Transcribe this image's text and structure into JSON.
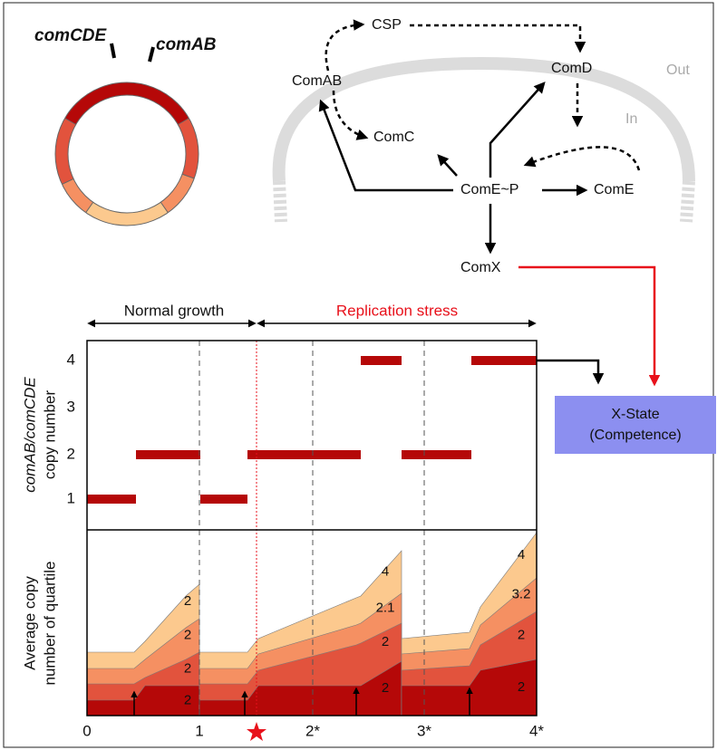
{
  "genes": {
    "left": "comCDE",
    "right": "comAB"
  },
  "pathway": {
    "csp": "CSP",
    "comab": "ComAB",
    "comd": "ComD",
    "comc": "ComC",
    "comep": "ComE~P",
    "come": "ComE",
    "comx": "ComX",
    "out": "Out",
    "in": "In"
  },
  "phases": {
    "normal": "Normal growth",
    "stress": "Replication stress"
  },
  "top_axis": {
    "label_italic": "comAB/comCDE",
    "label": "copy number",
    "ticks": [
      "1",
      "2",
      "3",
      "4"
    ]
  },
  "bottom_axis": {
    "label_1": "Average copy",
    "label_2": "number of quartile",
    "ticks": [
      "0",
      "1",
      "2*",
      "3*",
      "4*"
    ]
  },
  "state": {
    "line_1": "X-State",
    "line_2": "(Competence)"
  },
  "area_labels": [
    [
      "2",
      "2",
      "2",
      "2"
    ],
    [
      "2",
      "2",
      "2.1",
      "4"
    ],
    [
      "2",
      "2",
      "3.2",
      "4"
    ]
  ]
}
